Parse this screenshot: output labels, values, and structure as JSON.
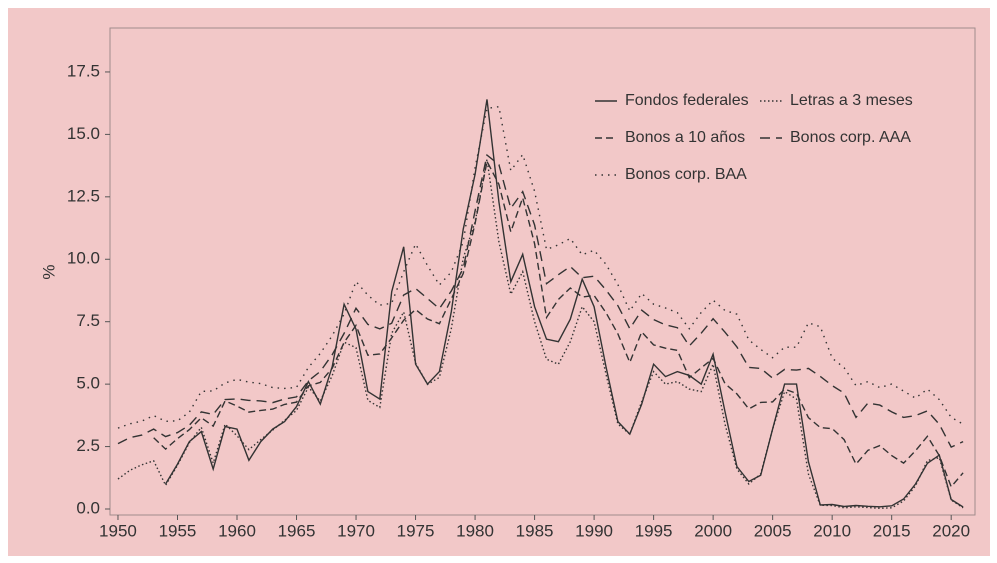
{
  "chart_data": {
    "type": "line",
    "y_label": "%",
    "x": [
      1950,
      1951,
      1952,
      1953,
      1954,
      1955,
      1956,
      1957,
      1958,
      1959,
      1960,
      1961,
      1962,
      1963,
      1964,
      1965,
      1966,
      1967,
      1968,
      1969,
      1970,
      1971,
      1972,
      1973,
      1974,
      1975,
      1976,
      1977,
      1978,
      1979,
      1980,
      1981,
      1982,
      1983,
      1984,
      1985,
      1986,
      1987,
      1988,
      1989,
      1990,
      1991,
      1992,
      1993,
      1994,
      1995,
      1996,
      1997,
      1998,
      1999,
      2000,
      2001,
      2002,
      2003,
      2004,
      2005,
      2006,
      2007,
      2008,
      2009,
      2010,
      2011,
      2012,
      2013,
      2014,
      2015,
      2016,
      2017,
      2018,
      2019,
      2020,
      2021
    ],
    "series": [
      {
        "name": "Fondos federales",
        "color": "#333333",
        "linestyle": "solid",
        "values": [
          null,
          null,
          null,
          null,
          1.0,
          1.8,
          2.7,
          3.1,
          1.6,
          3.3,
          3.2,
          1.95,
          2.7,
          3.2,
          3.5,
          4.1,
          5.1,
          4.2,
          5.7,
          8.2,
          7.2,
          4.7,
          4.4,
          8.7,
          10.5,
          5.8,
          5.0,
          5.5,
          7.9,
          11.2,
          13.4,
          16.4,
          12.3,
          9.1,
          10.2,
          8.1,
          6.8,
          6.7,
          7.6,
          9.2,
          8.1,
          5.7,
          3.5,
          3.0,
          4.2,
          5.8,
          5.3,
          5.5,
          5.35,
          5.0,
          6.2,
          3.9,
          1.7,
          1.1,
          1.35,
          3.2,
          5.0,
          5.0,
          1.9,
          0.16,
          0.18,
          0.1,
          0.14,
          0.11,
          0.09,
          0.13,
          0.4,
          1.0,
          1.83,
          2.16,
          0.38,
          0.08
        ]
      },
      {
        "name": "Letras a 3 meses",
        "color": "#333333",
        "linestyle": "dotted",
        "values": [
          1.2,
          1.55,
          1.77,
          1.93,
          0.95,
          1.75,
          2.66,
          3.27,
          1.84,
          3.4,
          2.93,
          2.38,
          2.78,
          3.16,
          3.55,
          3.95,
          4.88,
          4.32,
          5.34,
          6.68,
          6.46,
          4.35,
          4.07,
          7.04,
          7.89,
          5.84,
          4.99,
          5.27,
          7.22,
          10.04,
          11.5,
          14.0,
          10.7,
          8.6,
          9.5,
          7.5,
          6.0,
          5.8,
          6.7,
          8.1,
          7.5,
          5.4,
          3.4,
          3.0,
          4.3,
          5.5,
          5.0,
          5.1,
          4.8,
          4.7,
          5.8,
          3.4,
          1.6,
          1.0,
          1.4,
          3.2,
          4.7,
          4.4,
          1.4,
          0.15,
          0.14,
          0.05,
          0.09,
          0.06,
          0.03,
          0.05,
          0.32,
          0.93,
          1.94,
          2.06,
          0.36,
          0.05
        ]
      },
      {
        "name": "Bonos a 10 años",
        "color": "#333333",
        "linestyle": "dashed",
        "values": [
          null,
          null,
          null,
          2.85,
          2.4,
          2.82,
          3.18,
          3.65,
          3.32,
          4.33,
          4.12,
          3.88,
          3.95,
          4.0,
          4.19,
          4.28,
          4.93,
          5.07,
          5.64,
          6.67,
          7.35,
          6.16,
          6.21,
          6.85,
          7.56,
          7.99,
          7.61,
          7.42,
          8.41,
          9.43,
          11.43,
          13.92,
          13.0,
          11.1,
          12.46,
          10.62,
          7.67,
          8.39,
          8.85,
          8.49,
          8.55,
          7.86,
          7.01,
          5.87,
          7.09,
          6.57,
          6.44,
          6.35,
          5.26,
          5.65,
          6.03,
          5.02,
          4.61,
          4.01,
          4.27,
          4.29,
          4.8,
          4.63,
          3.66,
          3.26,
          3.22,
          2.78,
          1.8,
          2.35,
          2.54,
          2.14,
          1.84,
          2.33,
          2.91,
          2.14,
          0.89,
          1.45
        ]
      },
      {
        "name": "Bonos corp. AAA",
        "color": "#333333",
        "linestyle": "longdash",
        "values": [
          2.62,
          2.86,
          2.96,
          3.2,
          2.9,
          3.06,
          3.36,
          3.89,
          3.79,
          4.38,
          4.41,
          4.35,
          4.33,
          4.26,
          4.4,
          4.49,
          5.13,
          5.51,
          6.18,
          7.03,
          8.04,
          7.39,
          7.21,
          7.44,
          8.57,
          8.83,
          8.43,
          8.02,
          8.73,
          9.63,
          11.94,
          14.17,
          13.79,
          12.04,
          12.71,
          11.37,
          9.02,
          9.38,
          9.71,
          9.26,
          9.32,
          8.77,
          8.14,
          7.22,
          7.96,
          7.59,
          7.37,
          7.26,
          6.53,
          7.04,
          7.62,
          7.08,
          6.49,
          5.67,
          5.63,
          5.24,
          5.59,
          5.56,
          5.63,
          5.31,
          4.94,
          4.64,
          3.67,
          4.24,
          4.16,
          3.89,
          3.67,
          3.74,
          3.93,
          3.39,
          2.48,
          2.7
        ]
      },
      {
        "name": "Bonos corp. BAA",
        "color": "#333333",
        "linestyle": "sparsedot",
        "values": [
          3.24,
          3.41,
          3.52,
          3.74,
          3.51,
          3.53,
          3.88,
          4.71,
          4.73,
          5.05,
          5.19,
          5.08,
          5.02,
          4.86,
          4.83,
          4.87,
          5.67,
          6.23,
          6.94,
          7.81,
          9.11,
          8.56,
          8.16,
          8.24,
          9.5,
          10.61,
          9.75,
          8.97,
          9.49,
          10.69,
          13.67,
          16.04,
          16.11,
          13.55,
          14.19,
          12.72,
          10.39,
          10.58,
          10.83,
          10.18,
          10.36,
          9.8,
          8.98,
          7.93,
          8.63,
          8.2,
          8.05,
          7.86,
          7.22,
          7.87,
          8.36,
          7.95,
          7.8,
          6.77,
          6.39,
          6.06,
          6.48,
          6.48,
          7.45,
          7.3,
          6.04,
          5.66,
          4.94,
          5.1,
          4.86,
          5.0,
          4.72,
          4.44,
          4.8,
          4.38,
          3.67,
          3.4
        ]
      }
    ],
    "xlim": [
      1949.33,
      2022
    ],
    "xticks": [
      1950,
      1955,
      1960,
      1965,
      1970,
      1975,
      1980,
      1985,
      1990,
      1995,
      2000,
      2005,
      2010,
      2015,
      2020
    ],
    "ylim": [
      -0.24,
      19.26
    ],
    "yticks": [
      {
        "value": 0,
        "label": "0.0"
      },
      2.5,
      {
        "value": 5,
        "label": "5.0"
      },
      7.5,
      {
        "value": 10,
        "label": "10.0"
      },
      12.5,
      {
        "value": 15,
        "label": "15.0"
      },
      17.5
    ],
    "legend": "upper-right"
  }
}
